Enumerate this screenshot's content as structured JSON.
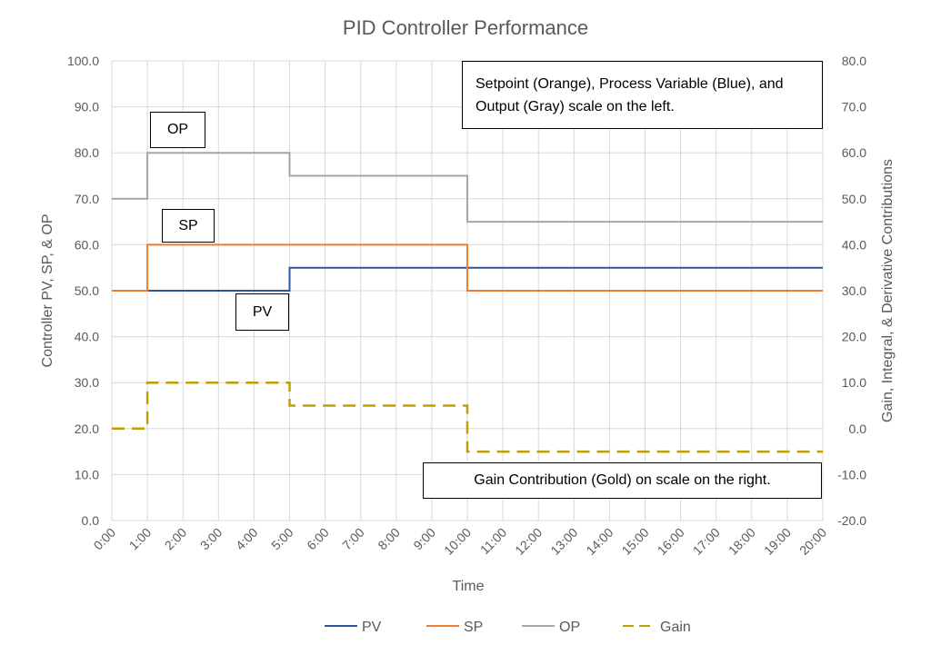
{
  "chart_data": {
    "type": "line",
    "title": "PID Controller Performance",
    "xlabel": "Time",
    "ylabel": "Controller PV, SP, & OP",
    "y2label": "Gain, Integral, & Derivative Contributions",
    "x": [
      "0:00",
      "1:00",
      "2:00",
      "3:00",
      "4:00",
      "5:00",
      "6:00",
      "7:00",
      "8:00",
      "9:00",
      "10:00",
      "11:00",
      "12:00",
      "13:00",
      "14:00",
      "15:00",
      "16:00",
      "17:00",
      "18:00",
      "19:00",
      "20:00"
    ],
    "ylim": [
      0,
      100
    ],
    "y2lim": [
      -20,
      80
    ],
    "yticks": [
      "0.0",
      "10.0",
      "20.0",
      "30.0",
      "40.0",
      "50.0",
      "60.0",
      "70.0",
      "80.0",
      "90.0",
      "100.0"
    ],
    "y2ticks": [
      "-20.0",
      "-10.0",
      "0.0",
      "10.0",
      "20.0",
      "30.0",
      "40.0",
      "50.0",
      "60.0",
      "70.0",
      "80.0"
    ],
    "grid": true,
    "legend_position": "bottom",
    "series": [
      {
        "name": "PV",
        "axis": "left",
        "color": "#2F5597",
        "dash": false,
        "values": [
          50,
          50,
          50,
          50,
          50,
          55,
          55,
          55,
          55,
          55,
          55,
          55,
          55,
          55,
          55,
          55,
          55,
          55,
          55,
          55,
          55
        ]
      },
      {
        "name": "SP",
        "axis": "left",
        "color": "#ED7D31",
        "dash": false,
        "values": [
          50,
          60,
          60,
          60,
          60,
          60,
          60,
          60,
          60,
          60,
          50,
          50,
          50,
          50,
          50,
          50,
          50,
          50,
          50,
          50,
          50
        ]
      },
      {
        "name": "OP",
        "axis": "left",
        "color": "#A5A5A5",
        "dash": false,
        "values": [
          70,
          80,
          80,
          80,
          80,
          75,
          75,
          75,
          75,
          75,
          65,
          65,
          65,
          65,
          65,
          65,
          65,
          65,
          65,
          65,
          65
        ]
      },
      {
        "name": "Gain",
        "axis": "right",
        "color": "#BF9F00",
        "dash": true,
        "values": [
          0,
          10,
          10,
          10,
          10,
          5,
          5,
          5,
          5,
          5,
          -5,
          -5,
          -5,
          -5,
          -5,
          -5,
          -5,
          -5,
          -5,
          -5,
          -5
        ]
      }
    ],
    "annotations": {
      "op": "OP",
      "sp": "SP",
      "pv": "PV",
      "left_scale_note": "Setpoint (Orange), Process Variable (Blue), and Output (Gray) scale on the left.",
      "right_scale_note": "Gain Contribution (Gold) on scale on the right."
    }
  }
}
